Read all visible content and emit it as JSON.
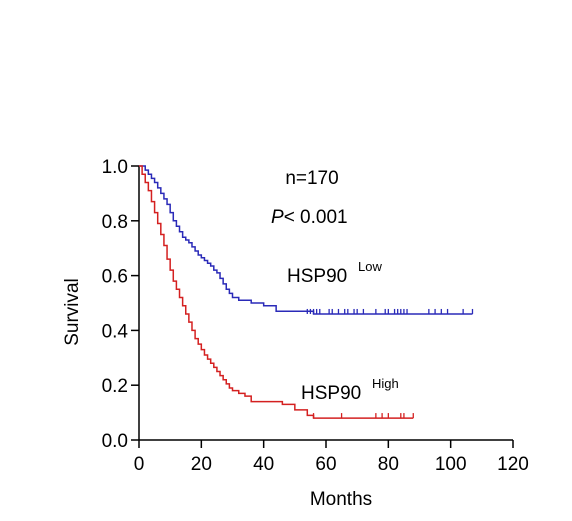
{
  "chart_data": {
    "type": "line",
    "subtype": "kaplan-meier",
    "xlabel": "Months",
    "ylabel": "Survival",
    "xlim": [
      0,
      120
    ],
    "ylim": [
      0,
      1
    ],
    "xticks": [
      0,
      20,
      40,
      60,
      80,
      100,
      120
    ],
    "xtick_labels": [
      "0",
      "20",
      "40",
      "60",
      "80",
      "100",
      "120"
    ],
    "yticks": [
      0,
      0.2,
      0.4,
      0.6,
      0.8,
      1.0
    ],
    "ytick_labels": [
      "0.0",
      "0.2",
      "0.4",
      "0.6",
      "0.8",
      "1.0"
    ],
    "grid": false,
    "annotations": {
      "n": "n=170",
      "p_italic": "P",
      "p_rest": "< 0.001"
    },
    "series": [
      {
        "label_main": "HSP90",
        "label_sup": "Low",
        "color": "#2a2ab8",
        "steps": [
          [
            0,
            1.0
          ],
          [
            2,
            0.985
          ],
          [
            3,
            0.97
          ],
          [
            4,
            0.955
          ],
          [
            5,
            0.94
          ],
          [
            6,
            0.92
          ],
          [
            7,
            0.9
          ],
          [
            8,
            0.88
          ],
          [
            9,
            0.86
          ],
          [
            10,
            0.83
          ],
          [
            11,
            0.8
          ],
          [
            12,
            0.78
          ],
          [
            13,
            0.76
          ],
          [
            14,
            0.74
          ],
          [
            15,
            0.73
          ],
          [
            16,
            0.72
          ],
          [
            17,
            0.705
          ],
          [
            18,
            0.69
          ],
          [
            19,
            0.675
          ],
          [
            20,
            0.665
          ],
          [
            21,
            0.655
          ],
          [
            22,
            0.645
          ],
          [
            23,
            0.635
          ],
          [
            24,
            0.62
          ],
          [
            25,
            0.61
          ],
          [
            26,
            0.59
          ],
          [
            27,
            0.57
          ],
          [
            28,
            0.55
          ],
          [
            29,
            0.535
          ],
          [
            30,
            0.52
          ],
          [
            32,
            0.51
          ],
          [
            36,
            0.5
          ],
          [
            40,
            0.49
          ],
          [
            44,
            0.47
          ],
          [
            56,
            0.46
          ],
          [
            107,
            0.46
          ]
        ],
        "censor_x": [
          54,
          55,
          56,
          57,
          58,
          61,
          62,
          64,
          66,
          67,
          69,
          70,
          72,
          76,
          79,
          80,
          82,
          83,
          84,
          85,
          86,
          93,
          95,
          97,
          99,
          104,
          107
        ]
      },
      {
        "label_main": "HSP90",
        "label_sup": "High",
        "color": "#d42020",
        "steps": [
          [
            0,
            1.0
          ],
          [
            1,
            0.97
          ],
          [
            2,
            0.94
          ],
          [
            3,
            0.91
          ],
          [
            4,
            0.87
          ],
          [
            5,
            0.83
          ],
          [
            6,
            0.79
          ],
          [
            7,
            0.75
          ],
          [
            8,
            0.71
          ],
          [
            9,
            0.66
          ],
          [
            10,
            0.62
          ],
          [
            11,
            0.58
          ],
          [
            12,
            0.55
          ],
          [
            13,
            0.52
          ],
          [
            14,
            0.49
          ],
          [
            15,
            0.46
          ],
          [
            16,
            0.43
          ],
          [
            17,
            0.4
          ],
          [
            18,
            0.37
          ],
          [
            19,
            0.35
          ],
          [
            20,
            0.33
          ],
          [
            21,
            0.31
          ],
          [
            22,
            0.295
          ],
          [
            23,
            0.28
          ],
          [
            24,
            0.265
          ],
          [
            25,
            0.25
          ],
          [
            26,
            0.235
          ],
          [
            27,
            0.22
          ],
          [
            28,
            0.205
          ],
          [
            29,
            0.19
          ],
          [
            30,
            0.18
          ],
          [
            32,
            0.17
          ],
          [
            34,
            0.16
          ],
          [
            36,
            0.14
          ],
          [
            46,
            0.13
          ],
          [
            50,
            0.11
          ],
          [
            54,
            0.09
          ],
          [
            56,
            0.08
          ],
          [
            88,
            0.08
          ]
        ],
        "censor_x": [
          56,
          65,
          76,
          78,
          80,
          84,
          85,
          88
        ]
      }
    ]
  }
}
